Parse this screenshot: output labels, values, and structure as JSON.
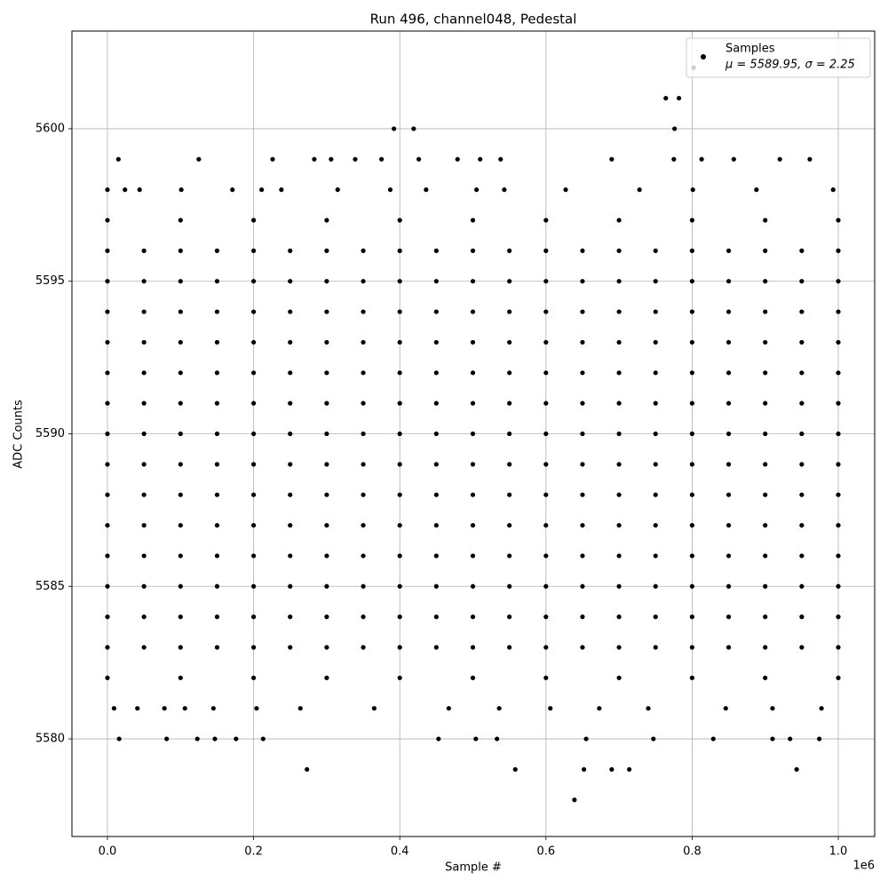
{
  "chart_data": {
    "type": "scatter",
    "title": "Run 496, channel048, Pedestal",
    "x_label": "Sample #",
    "y_label": "ADC Counts",
    "x_offset_label": "1e6",
    "xlim": [
      -48600,
      1049800
    ],
    "ylim": [
      5576.8,
      5603.2
    ],
    "xticks": [
      {
        "value": 0,
        "label": "0.0"
      },
      {
        "value": 200000,
        "label": "0.2"
      },
      {
        "value": 400000,
        "label": "0.4"
      },
      {
        "value": 600000,
        "label": "0.6"
      },
      {
        "value": 800000,
        "label": "0.8"
      },
      {
        "value": 1000000,
        "label": "1.0"
      }
    ],
    "yticks": [
      5580,
      5585,
      5590,
      5595,
      5600
    ],
    "grid": true,
    "legend": "upper right",
    "x": [
      0,
      50000,
      100000,
      150000,
      200000,
      250000,
      300000,
      350000,
      400000,
      450000,
      500000,
      550000,
      600000,
      650000,
      700000,
      750000,
      800000,
      850000,
      900000,
      950000,
      1000000,
      0,
      50000,
      100000,
      150000,
      200000,
      250000,
      300000,
      350000,
      400000,
      450000,
      500000,
      550000,
      600000,
      650000,
      700000,
      750000,
      800000,
      850000,
      900000,
      950000,
      1000000,
      0,
      50000,
      100000,
      150000,
      200000,
      250000,
      300000,
      350000,
      400000,
      450000,
      500000,
      550000,
      600000,
      650000,
      700000,
      750000,
      800000,
      850000,
      900000,
      950000,
      1000000,
      0,
      50000,
      100000,
      150000,
      200000,
      250000,
      300000,
      350000,
      400000,
      450000,
      500000,
      550000,
      600000,
      650000,
      700000,
      750000,
      800000,
      850000,
      900000,
      950000,
      1000000,
      0,
      50000,
      100000,
      150000,
      200000,
      250000,
      300000,
      350000,
      400000,
      450000,
      500000,
      550000,
      600000,
      650000,
      700000,
      750000,
      800000,
      850000,
      900000,
      950000,
      1000000,
      0,
      50000,
      100000,
      150000,
      200000,
      250000,
      300000,
      350000,
      400000,
      450000,
      500000,
      550000,
      600000,
      650000,
      700000,
      750000,
      800000,
      850000,
      900000,
      950000,
      1000000,
      0,
      50000,
      100000,
      150000,
      200000,
      250000,
      300000,
      350000,
      400000,
      450000,
      500000,
      550000,
      600000,
      650000,
      700000,
      750000,
      800000,
      850000,
      900000,
      950000,
      1000000,
      0,
      50000,
      100000,
      150000,
      200000,
      250000,
      300000,
      350000,
      400000,
      450000,
      500000,
      550000,
      600000,
      650000,
      700000,
      750000,
      800000,
      850000,
      900000,
      950000,
      1000000,
      0,
      50000,
      100000,
      150000,
      200000,
      250000,
      300000,
      350000,
      400000,
      450000,
      500000,
      550000,
      600000,
      650000,
      700000,
      750000,
      800000,
      850000,
      900000,
      950000,
      1000000,
      0,
      50000,
      100000,
      150000,
      200000,
      250000,
      300000,
      350000,
      400000,
      450000,
      500000,
      550000,
      600000,
      650000,
      700000,
      750000,
      800000,
      850000,
      900000,
      950000,
      1000000,
      0,
      50000,
      100000,
      150000,
      200000,
      250000,
      300000,
      350000,
      400000,
      450000,
      500000,
      550000,
      600000,
      650000,
      700000,
      750000,
      800000,
      850000,
      900000,
      950000,
      1000000,
      0,
      50000,
      100000,
      150000,
      200000,
      250000,
      300000,
      350000,
      400000,
      450000,
      500000,
      550000,
      600000,
      650000,
      700000,
      750000,
      800000,
      850000,
      900000,
      950000,
      1000000,
      0,
      50000,
      100000,
      150000,
      200000,
      250000,
      300000,
      350000,
      400000,
      450000,
      500000,
      550000,
      600000,
      650000,
      700000,
      750000,
      800000,
      850000,
      900000,
      950000,
      1000000,
      0,
      50000,
      100000,
      150000,
      200000,
      250000,
      300000,
      350000,
      400000,
      450000,
      500000,
      550000,
      600000,
      650000,
      700000,
      750000,
      800000,
      850000,
      900000,
      950000,
      1000000,
      0,
      100000,
      200000,
      300000,
      400000,
      500000,
      600000,
      700000,
      800000,
      900000,
      1000000,
      0,
      100000,
      200000,
      300000,
      400000,
      500000,
      600000,
      700000,
      800000,
      900000,
      1000000,
      802000,
      764000,
      782000,
      392000,
      419000,
      776000,
      15000,
      125000,
      226000,
      283000,
      306000,
      339000,
      375000,
      426000,
      479000,
      510000,
      538000,
      690000,
      775000,
      813000,
      857000,
      920000,
      961000,
      0,
      24000,
      44000,
      101000,
      171000,
      211000,
      238000,
      315000,
      387000,
      436000,
      505000,
      543000,
      627000,
      728000,
      801000,
      888000,
      993000,
      9000,
      41000,
      78000,
      106000,
      145000,
      204000,
      264000,
      365000,
      467000,
      536000,
      606000,
      673000,
      740000,
      846000,
      910000,
      977000,
      16000,
      81000,
      123000,
      147000,
      176000,
      213000,
      453000,
      504000,
      533000,
      655000,
      747000,
      829000,
      910000,
      934000,
      974000,
      273000,
      558000,
      652000,
      690000,
      714000,
      943000,
      639000
    ],
    "series": [
      {
        "name": "Samples",
        "stats_label": "μ = 5589.95, σ = 2.25",
        "color": "#000000",
        "values": [
          5583,
          5583,
          5583,
          5583,
          5583,
          5583,
          5583,
          5583,
          5583,
          5583,
          5583,
          5583,
          5583,
          5583,
          5583,
          5583,
          5583,
          5583,
          5583,
          5583,
          5583,
          5584,
          5584,
          5584,
          5584,
          5584,
          5584,
          5584,
          5584,
          5584,
          5584,
          5584,
          5584,
          5584,
          5584,
          5584,
          5584,
          5584,
          5584,
          5584,
          5584,
          5584,
          5585,
          5585,
          5585,
          5585,
          5585,
          5585,
          5585,
          5585,
          5585,
          5585,
          5585,
          5585,
          5585,
          5585,
          5585,
          5585,
          5585,
          5585,
          5585,
          5585,
          5585,
          5586,
          5586,
          5586,
          5586,
          5586,
          5586,
          5586,
          5586,
          5586,
          5586,
          5586,
          5586,
          5586,
          5586,
          5586,
          5586,
          5586,
          5586,
          5586,
          5586,
          5586,
          5587,
          5587,
          5587,
          5587,
          5587,
          5587,
          5587,
          5587,
          5587,
          5587,
          5587,
          5587,
          5587,
          5587,
          5587,
          5587,
          5587,
          5587,
          5587,
          5587,
          5587,
          5588,
          5588,
          5588,
          5588,
          5588,
          5588,
          5588,
          5588,
          5588,
          5588,
          5588,
          5588,
          5588,
          5588,
          5588,
          5588,
          5588,
          5588,
          5588,
          5588,
          5588,
          5589,
          5589,
          5589,
          5589,
          5589,
          5589,
          5589,
          5589,
          5589,
          5589,
          5589,
          5589,
          5589,
          5589,
          5589,
          5589,
          5589,
          5589,
          5589,
          5589,
          5589,
          5590,
          5590,
          5590,
          5590,
          5590,
          5590,
          5590,
          5590,
          5590,
          5590,
          5590,
          5590,
          5590,
          5590,
          5590,
          5590,
          5590,
          5590,
          5590,
          5590,
          5590,
          5591,
          5591,
          5591,
          5591,
          5591,
          5591,
          5591,
          5591,
          5591,
          5591,
          5591,
          5591,
          5591,
          5591,
          5591,
          5591,
          5591,
          5591,
          5591,
          5591,
          5591,
          5592,
          5592,
          5592,
          5592,
          5592,
          5592,
          5592,
          5592,
          5592,
          5592,
          5592,
          5592,
          5592,
          5592,
          5592,
          5592,
          5592,
          5592,
          5592,
          5592,
          5592,
          5593,
          5593,
          5593,
          5593,
          5593,
          5593,
          5593,
          5593,
          5593,
          5593,
          5593,
          5593,
          5593,
          5593,
          5593,
          5593,
          5593,
          5593,
          5593,
          5593,
          5593,
          5594,
          5594,
          5594,
          5594,
          5594,
          5594,
          5594,
          5594,
          5594,
          5594,
          5594,
          5594,
          5594,
          5594,
          5594,
          5594,
          5594,
          5594,
          5594,
          5594,
          5594,
          5595,
          5595,
          5595,
          5595,
          5595,
          5595,
          5595,
          5595,
          5595,
          5595,
          5595,
          5595,
          5595,
          5595,
          5595,
          5595,
          5595,
          5595,
          5595,
          5595,
          5595,
          5596,
          5596,
          5596,
          5596,
          5596,
          5596,
          5596,
          5596,
          5596,
          5596,
          5596,
          5596,
          5596,
          5596,
          5596,
          5596,
          5596,
          5596,
          5596,
          5596,
          5596,
          5582,
          5582,
          5582,
          5582,
          5582,
          5582,
          5582,
          5582,
          5582,
          5582,
          5582,
          5597,
          5597,
          5597,
          5597,
          5597,
          5597,
          5597,
          5597,
          5597,
          5597,
          5597,
          5602,
          5601,
          5601,
          5600,
          5600,
          5600,
          5599,
          5599,
          5599,
          5599,
          5599,
          5599,
          5599,
          5599,
          5599,
          5599,
          5599,
          5599,
          5599,
          5599,
          5599,
          5599,
          5599,
          5598,
          5598,
          5598,
          5598,
          5598,
          5598,
          5598,
          5598,
          5598,
          5598,
          5598,
          5598,
          5598,
          5598,
          5598,
          5598,
          5598,
          5581,
          5581,
          5581,
          5581,
          5581,
          5581,
          5581,
          5581,
          5581,
          5581,
          5581,
          5581,
          5581,
          5581,
          5581,
          5581,
          5580,
          5580,
          5580,
          5580,
          5580,
          5580,
          5580,
          5580,
          5580,
          5580,
          5580,
          5580,
          5580,
          5580,
          5580,
          5579,
          5579,
          5579,
          5579,
          5579,
          5579,
          5578
        ]
      }
    ]
  }
}
